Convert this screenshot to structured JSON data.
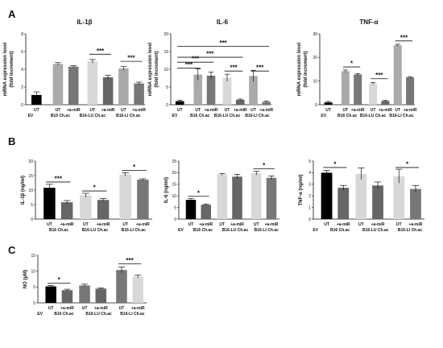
{
  "panels": [
    {
      "letter": "A"
    },
    {
      "letter": "B"
    },
    {
      "letter": "C"
    }
  ],
  "colors": {
    "black": "#000000",
    "gray_light": "#aaaaaa",
    "gray_mid": "#777777",
    "gray_lighter": "#d8d8d8",
    "gray_dark": "#666666"
  },
  "chart_data": [
    {
      "id": "A1",
      "type": "bar",
      "title": "IL-1β",
      "ylabel": "mRNA expression level (fold increment)",
      "ylim": [
        0,
        8
      ],
      "yticks": [
        0,
        2,
        4,
        6,
        8
      ],
      "tick_labels": [
        "UT",
        "UT",
        "+a-miR",
        "UT",
        "+a-miR",
        "UT",
        "+a-miR"
      ],
      "group_labels": [
        "EV",
        "B16 Ch.ac",
        "B16-LU Ch.ac",
        "B16-LI Ch.ac"
      ],
      "values": [
        1.1,
        4.6,
        4.3,
        4.9,
        3.1,
        4.1,
        2.4
      ],
      "errors": [
        0.35,
        0.15,
        0.1,
        0.2,
        0.2,
        0.2,
        0.15
      ],
      "colors": [
        "black",
        "gray_light",
        "gray_mid",
        "gray_lighter",
        "gray_dark",
        "gray_light",
        "gray_mid"
      ],
      "significance": [
        {
          "from": 3,
          "to": 4,
          "label": "***",
          "y": 5.7
        },
        {
          "from": 5,
          "to": 6,
          "label": "***",
          "y": 4.9
        }
      ]
    },
    {
      "id": "A2",
      "type": "bar",
      "title": "IL-6",
      "ylabel": "mRNA expression level (fold increment)",
      "ylim": [
        0,
        20
      ],
      "yticks": [
        0,
        5,
        10,
        15,
        20
      ],
      "tick_labels": [
        "UT",
        "UT",
        "+a-miR",
        "UT",
        "+a-miR",
        "UT",
        "+a-miR"
      ],
      "group_labels": [
        "EV",
        "B16 Ch.ac",
        "B16-LU Ch.ac",
        "B16-LI Ch.ac"
      ],
      "values": [
        1.0,
        8.5,
        8.2,
        7.6,
        1.4,
        8.1,
        0.8
      ],
      "errors": [
        0.3,
        1.6,
        1.0,
        1.0,
        0.2,
        1.6,
        0.2
      ],
      "colors": [
        "black",
        "gray_light",
        "gray_mid",
        "gray_lighter",
        "gray_dark",
        "gray_light",
        "gray_mid"
      ],
      "significance": [
        {
          "from": 0,
          "to": 6,
          "label": "***",
          "y": 16.5
        },
        {
          "from": 0,
          "to": 4,
          "label": "***",
          "y": 13.4
        },
        {
          "from": 0,
          "to": 2,
          "label": "***",
          "y": 12.0
        },
        {
          "from": 0,
          "to": 1,
          "label": "***",
          "y": 10.3
        },
        {
          "from": 3,
          "to": 4,
          "label": "***",
          "y": 9.5
        },
        {
          "from": 5,
          "to": 6,
          "label": "***",
          "y": 9.5
        }
      ]
    },
    {
      "id": "A3",
      "type": "bar",
      "title": "TNF-α",
      "ylabel": "mRNA expression level (fold increment)",
      "ylim": [
        0,
        30
      ],
      "yticks": [
        0,
        10,
        20,
        30
      ],
      "tick_labels": [
        "UT",
        "UT",
        "+a-miR",
        "UT",
        "+a-miR",
        "UT",
        "+a-miR"
      ],
      "group_labels": [
        "EV",
        "B16 Ch.ac",
        "B16-LU Ch.ac",
        "B16-LI Ch.ac"
      ],
      "values": [
        1.0,
        14.2,
        12.8,
        9.0,
        1.6,
        25.2,
        11.6
      ],
      "errors": [
        0.4,
        0.5,
        0.4,
        0.4,
        0.2,
        0.4,
        0.3
      ],
      "colors": [
        "black",
        "gray_light",
        "gray_mid",
        "gray_lighter",
        "gray_dark",
        "gray_light",
        "gray_mid"
      ],
      "significance": [
        {
          "from": 1,
          "to": 2,
          "label": "*",
          "y": 16.0
        },
        {
          "from": 3,
          "to": 4,
          "label": "***",
          "y": 11.0
        },
        {
          "from": 5,
          "to": 6,
          "label": "***",
          "y": 27.0
        }
      ]
    },
    {
      "id": "B1",
      "type": "bar",
      "ylabel": "IL-1β (ng/ml)",
      "ylim": [
        0,
        20
      ],
      "yticks": [
        0,
        5,
        10,
        15,
        20
      ],
      "tick_labels": [
        "UT",
        "+a-miR",
        "UT",
        "+a-miR",
        "UT",
        "+a-miR"
      ],
      "group_labels": [
        "B16 Ch.ac",
        "B16-LU Ch.ac",
        "B16-LI Ch.ac"
      ],
      "values": [
        10.8,
        5.8,
        8.2,
        6.6,
        15.4,
        13.6
      ],
      "errors": [
        1.2,
        0.6,
        0.7,
        0.5,
        0.6,
        0.3
      ],
      "colors": [
        "black",
        "gray_dark",
        "gray_lighter",
        "gray_dark",
        "gray_lighter",
        "gray_mid"
      ],
      "significance": [
        {
          "from": 0,
          "to": 1,
          "label": "***",
          "y": 12.8
        },
        {
          "from": 2,
          "to": 3,
          "label": "*",
          "y": 9.7
        },
        {
          "from": 4,
          "to": 5,
          "label": "*",
          "y": 16.8
        }
      ]
    },
    {
      "id": "B2",
      "type": "bar",
      "ylabel": "IL-6 (ng/ml)",
      "ylim": [
        0,
        25
      ],
      "yticks": [
        0,
        5,
        10,
        15,
        20,
        25
      ],
      "tick_labels": [
        "UT",
        "+a-miR",
        "UT",
        "+a-miR",
        "UT",
        "+a-miR"
      ],
      "group_labels": [
        "EV",
        "B16 Ch.ac",
        "B16-LU Ch.ac",
        "B16-LI Ch.ac"
      ],
      "values": [
        8.3,
        6.2,
        19.3,
        18.3,
        19.8,
        17.8
      ],
      "errors": [
        0.5,
        0.3,
        0.4,
        1.0,
        0.8,
        0.8
      ],
      "colors": [
        "black",
        "gray_dark",
        "gray_lighter",
        "gray_dark",
        "gray_lighter",
        "gray_mid"
      ],
      "significance": [
        {
          "from": 0,
          "to": 1,
          "label": "*",
          "y": 9.8
        },
        {
          "from": 4,
          "to": 5,
          "label": "*",
          "y": 21.7
        }
      ]
    },
    {
      "id": "B3",
      "type": "bar",
      "ylabel": "TNF-α (ng/ml)",
      "ylim": [
        0,
        5
      ],
      "yticks": [
        0,
        1,
        2,
        3,
        4,
        5
      ],
      "tick_labels": [
        "UT",
        "+a-miR",
        "UT",
        "+a-miR",
        "UT",
        "+a-miR"
      ],
      "group_labels": [
        "EV",
        "B16 Ch.ac",
        "B16-LU Ch.ac",
        "B16-LI Ch.ac"
      ],
      "values": [
        4.0,
        2.7,
        3.9,
        2.9,
        3.7,
        2.6
      ],
      "errors": [
        0.2,
        0.2,
        0.5,
        0.3,
        0.6,
        0.3
      ],
      "colors": [
        "black",
        "gray_dark",
        "gray_lighter",
        "gray_dark",
        "gray_lighter",
        "gray_mid"
      ],
      "significance": [
        {
          "from": 0,
          "to": 1,
          "label": "*",
          "y": 4.45
        },
        {
          "from": 4,
          "to": 5,
          "label": "*",
          "y": 4.45
        }
      ]
    },
    {
      "id": "C1",
      "type": "bar",
      "ylabel": "NO (μM)",
      "ylim": [
        0,
        15
      ],
      "yticks": [
        0,
        5,
        10,
        15
      ],
      "tick_labels": [
        "UT",
        "+a-miR",
        "UT",
        "+a-miR",
        "UT",
        "+a-miR"
      ],
      "group_labels": [
        "EV",
        "B16 Ch.ac",
        "B16-LU Ch.ac",
        "B16-LI Ch.ac"
      ],
      "values": [
        5.2,
        4.0,
        5.5,
        4.5,
        10.4,
        8.3
      ],
      "errors": [
        0.3,
        0.3,
        0.4,
        0.2,
        0.9,
        0.5
      ],
      "colors": [
        "black",
        "gray_dark",
        "gray_mid",
        "gray_dark",
        "gray_mid",
        "gray_lighter"
      ],
      "significance": [
        {
          "from": 0,
          "to": 1,
          "label": "*",
          "y": 6.2
        },
        {
          "from": 4,
          "to": 5,
          "label": "***",
          "y": 12.3
        }
      ]
    }
  ]
}
